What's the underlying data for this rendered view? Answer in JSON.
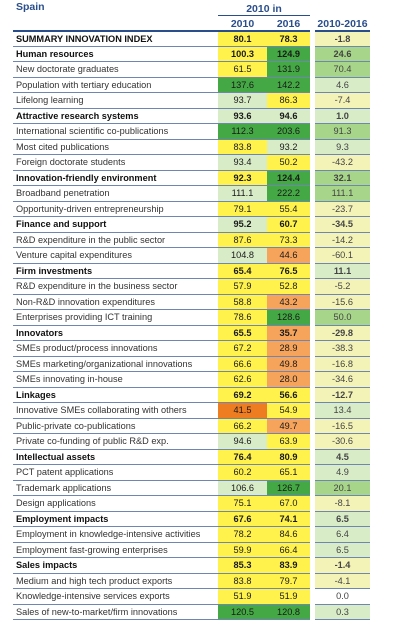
{
  "header": {
    "country": "Spain",
    "group1": "2010 in",
    "y2010": "2010",
    "y2016": "2016",
    "change": "2010-2016"
  },
  "colors": {
    "top": "#44a844",
    "high": "#a7d68a",
    "good": "#d8ecc8",
    "ok": "#f3f3b8",
    "mid": "#fff24d",
    "low": "#f6a45c",
    "bottom": "#ee7d22",
    "white": "#ffffff"
  },
  "rows": [
    {
      "label": "SUMMARY INNOVATION INDEX",
      "bold": true,
      "v2010": "80.1",
      "v2016": "78.3",
      "change": "-1.8",
      "c2010": "mid",
      "c2016": "mid",
      "cchg": "ok"
    },
    {
      "label": "Human resources",
      "bold": true,
      "v2010": "100.3",
      "v2016": "124.9",
      "change": "24.6",
      "c2010": "mid",
      "c2016": "top",
      "cchg": "high"
    },
    {
      "label": "New doctorate graduates",
      "bold": false,
      "v2010": "61.5",
      "v2016": "131.9",
      "change": "70.4",
      "c2010": "mid",
      "c2016": "top",
      "cchg": "high"
    },
    {
      "label": "Population with tertiary education",
      "bold": false,
      "v2010": "137.6",
      "v2016": "142.2",
      "change": "4.6",
      "c2010": "top",
      "c2016": "top",
      "cchg": "good"
    },
    {
      "label": "Lifelong learning",
      "bold": false,
      "v2010": "93.7",
      "v2016": "86.3",
      "change": "-7.4",
      "c2010": "good",
      "c2016": "mid",
      "cchg": "ok"
    },
    {
      "label": "Attractive research systems",
      "bold": true,
      "v2010": "93.6",
      "v2016": "94.6",
      "change": "1.0",
      "c2010": "good",
      "c2016": "good",
      "cchg": "good"
    },
    {
      "label": "International scientific co-publications",
      "bold": false,
      "v2010": "112.3",
      "v2016": "203.6",
      "change": "91.3",
      "c2010": "top",
      "c2016": "top",
      "cchg": "high"
    },
    {
      "label": "Most cited publications",
      "bold": false,
      "v2010": "83.8",
      "v2016": "93.2",
      "change": "9.3",
      "c2010": "mid",
      "c2016": "good",
      "cchg": "good"
    },
    {
      "label": "Foreign doctorate students",
      "bold": false,
      "v2010": "93.4",
      "v2016": "50.2",
      "change": "-43.2",
      "c2010": "good",
      "c2016": "mid",
      "cchg": "ok"
    },
    {
      "label": "Innovation-friendly environment",
      "bold": true,
      "v2010": "92.3",
      "v2016": "124.4",
      "change": "32.1",
      "c2010": "mid",
      "c2016": "top",
      "cchg": "high"
    },
    {
      "label": "Broadband penetration",
      "bold": false,
      "v2010": "111.1",
      "v2016": "222.2",
      "change": "111.1",
      "c2010": "good",
      "c2016": "top",
      "cchg": "high"
    },
    {
      "label": "Opportunity-driven entrepreneurship",
      "bold": false,
      "v2010": "79.1",
      "v2016": "55.4",
      "change": "-23.7",
      "c2010": "mid",
      "c2016": "mid",
      "cchg": "ok"
    },
    {
      "label": "Finance and support",
      "bold": true,
      "v2010": "95.2",
      "v2016": "60.7",
      "change": "-34.5",
      "c2010": "good",
      "c2016": "mid",
      "cchg": "ok"
    },
    {
      "label": "R&D expenditure in the public sector",
      "bold": false,
      "v2010": "87.6",
      "v2016": "73.3",
      "change": "-14.2",
      "c2010": "mid",
      "c2016": "mid",
      "cchg": "ok"
    },
    {
      "label": "Venture capital expenditures",
      "bold": false,
      "v2010": "104.8",
      "v2016": "44.6",
      "change": "-60.1",
      "c2010": "good",
      "c2016": "low",
      "cchg": "ok"
    },
    {
      "label": "Firm investments",
      "bold": true,
      "v2010": "65.4",
      "v2016": "76.5",
      "change": "11.1",
      "c2010": "mid",
      "c2016": "mid",
      "cchg": "good"
    },
    {
      "label": "R&D expenditure in the business sector",
      "bold": false,
      "v2010": "57.9",
      "v2016": "52.8",
      "change": "-5.2",
      "c2010": "mid",
      "c2016": "mid",
      "cchg": "ok"
    },
    {
      "label": "Non-R&D innovation expenditures",
      "bold": false,
      "v2010": "58.8",
      "v2016": "43.2",
      "change": "-15.6",
      "c2010": "mid",
      "c2016": "low",
      "cchg": "ok"
    },
    {
      "label": "Enterprises providing ICT training",
      "bold": false,
      "v2010": "78.6",
      "v2016": "128.6",
      "change": "50.0",
      "c2010": "mid",
      "c2016": "top",
      "cchg": "high"
    },
    {
      "label": "Innovators",
      "bold": true,
      "v2010": "65.5",
      "v2016": "35.7",
      "change": "-29.8",
      "c2010": "mid",
      "c2016": "low",
      "cchg": "ok"
    },
    {
      "label": "SMEs product/process innovations",
      "bold": false,
      "v2010": "67.2",
      "v2016": "28.9",
      "change": "-38.3",
      "c2010": "mid",
      "c2016": "low",
      "cchg": "ok"
    },
    {
      "label": "SMEs marketing/organizational innovations",
      "bold": false,
      "v2010": "66.6",
      "v2016": "49.8",
      "change": "-16.8",
      "c2010": "mid",
      "c2016": "low",
      "cchg": "ok"
    },
    {
      "label": "SMEs innovating in-house",
      "bold": false,
      "v2010": "62.6",
      "v2016": "28.0",
      "change": "-34.6",
      "c2010": "mid",
      "c2016": "low",
      "cchg": "ok"
    },
    {
      "label": "Linkages",
      "bold": true,
      "v2010": "69.2",
      "v2016": "56.6",
      "change": "-12.7",
      "c2010": "mid",
      "c2016": "mid",
      "cchg": "ok"
    },
    {
      "label": "Innovative SMEs collaborating with others",
      "bold": false,
      "v2010": "41.5",
      "v2016": "54.9",
      "change": "13.4",
      "c2010": "bottom",
      "c2016": "mid",
      "cchg": "good"
    },
    {
      "label": "Public-private co-publications",
      "bold": false,
      "v2010": "66.2",
      "v2016": "49.7",
      "change": "-16.5",
      "c2010": "mid",
      "c2016": "low",
      "cchg": "ok"
    },
    {
      "label": "Private co-funding of public R&D exp.",
      "bold": false,
      "v2010": "94.6",
      "v2016": "63.9",
      "change": "-30.6",
      "c2010": "good",
      "c2016": "mid",
      "cchg": "ok"
    },
    {
      "label": "Intellectual assets",
      "bold": true,
      "v2010": "76.4",
      "v2016": "80.9",
      "change": "4.5",
      "c2010": "mid",
      "c2016": "mid",
      "cchg": "good"
    },
    {
      "label": "PCT patent applications",
      "bold": false,
      "v2010": "60.2",
      "v2016": "65.1",
      "change": "4.9",
      "c2010": "mid",
      "c2016": "mid",
      "cchg": "good"
    },
    {
      "label": "Trademark applications",
      "bold": false,
      "v2010": "106.6",
      "v2016": "126.7",
      "change": "20.1",
      "c2010": "good",
      "c2016": "top",
      "cchg": "high"
    },
    {
      "label": "Design applications",
      "bold": false,
      "v2010": "75.1",
      "v2016": "67.0",
      "change": "-8.1",
      "c2010": "mid",
      "c2016": "mid",
      "cchg": "ok"
    },
    {
      "label": "Employment impacts",
      "bold": true,
      "v2010": "67.6",
      "v2016": "74.1",
      "change": "6.5",
      "c2010": "mid",
      "c2016": "mid",
      "cchg": "good"
    },
    {
      "label": "Employment in knowledge-intensive activities",
      "bold": false,
      "v2010": "78.2",
      "v2016": "84.6",
      "change": "6.4",
      "c2010": "mid",
      "c2016": "mid",
      "cchg": "good"
    },
    {
      "label": "Employment fast-growing enterprises",
      "bold": false,
      "v2010": "59.9",
      "v2016": "66.4",
      "change": "6.5",
      "c2010": "mid",
      "c2016": "mid",
      "cchg": "good"
    },
    {
      "label": "Sales impacts",
      "bold": true,
      "v2010": "85.3",
      "v2016": "83.9",
      "change": "-1.4",
      "c2010": "mid",
      "c2016": "mid",
      "cchg": "ok"
    },
    {
      "label": "Medium and high tech product exports",
      "bold": false,
      "v2010": "83.8",
      "v2016": "79.7",
      "change": "-4.1",
      "c2010": "mid",
      "c2016": "mid",
      "cchg": "ok"
    },
    {
      "label": "Knowledge-intensive services exports",
      "bold": false,
      "v2010": "51.9",
      "v2016": "51.9",
      "change": "0.0",
      "c2010": "mid",
      "c2016": "mid",
      "cchg": "white"
    },
    {
      "label": "Sales of new-to-market/firm innovations",
      "bold": false,
      "v2010": "120.5",
      "v2016": "120.8",
      "change": "0.3",
      "c2010": "top",
      "c2016": "top",
      "cchg": "good"
    }
  ]
}
